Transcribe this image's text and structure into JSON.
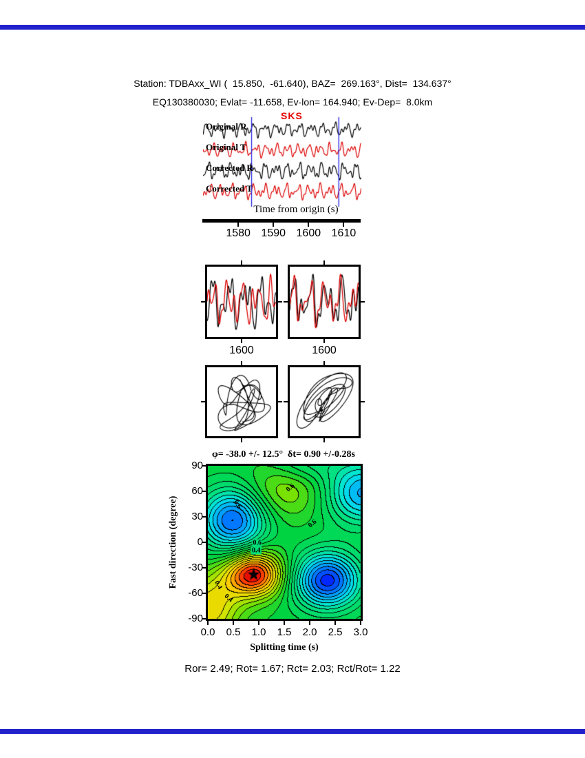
{
  "header": {
    "line1": "Station: TDBAxx_WI (  15.850,  -61.640), BAZ=  269.163°, Dist=  134.637°",
    "line2": "EQ130380030; Evlat= -11.658, Ev-lon= 164.940; Ev-Dep=  8.0km"
  },
  "seismogram": {
    "phase_label": "SKS",
    "axis_label": "Time from origin (s)",
    "trace_labels": [
      "Original R",
      "Original T",
      "Corrected R",
      "Corrected T"
    ],
    "tick_labels": [
      "1580",
      "1590",
      "1600",
      "1610"
    ],
    "colors": {
      "radial": "#000000",
      "transverse": "#dd0000",
      "window_line": "#2222e6",
      "phase": "#e60000"
    }
  },
  "wave_panels": {
    "tick_label": "1600"
  },
  "contour": {
    "title": "φ= -38.0 +/- 12.5°  δt= 0.90 +/-0.28s",
    "xlabel": "Splitting time (s)",
    "ylabel": "Fast direction (degree)",
    "xtick_labels": [
      "0.0",
      "0.5",
      "1.0",
      "1.5",
      "2.0",
      "2.5",
      "3.0"
    ],
    "ytick_labels": [
      "90",
      "60",
      "30",
      "0",
      "-30",
      "-60",
      "-90"
    ]
  },
  "footer": {
    "stats_line": "Ror= 2.49; Rot= 1.67; Rct= 2.03; Rct/Rot= 1.22"
  },
  "chart_data": {
    "type": "composite",
    "measurement": {
      "phi_deg": -38.0,
      "phi_err_deg": 12.5,
      "dt_s": 0.9,
      "dt_err_s": 0.28,
      "Ror": 2.49,
      "Rot": 1.67,
      "Rct": 2.03,
      "Rct_over_Rot": 1.22
    },
    "station": {
      "name": "TDBAxx_WI",
      "lat": 15.85,
      "lon": -61.64,
      "baz_deg": 269.163,
      "dist_deg": 134.637
    },
    "event": {
      "id": "EQ130380030",
      "lat": -11.658,
      "lon": 164.94,
      "depth_km": 8.0
    },
    "seismogram": {
      "time_range_s": [
        1570,
        1615
      ],
      "tick_values": [
        1580,
        1590,
        1600,
        1610
      ],
      "window_s": [
        1583.8,
        1608.6
      ],
      "rows": [
        {
          "label": "Original R",
          "color": "#000000",
          "comps": [
            [
              1,
              0.3,
              0.0
            ],
            [
              0.7,
              0.52,
              1.9
            ],
            [
              0.45,
              0.83,
              4.1
            ],
            [
              0.3,
              1.15,
              2.3
            ]
          ]
        },
        {
          "label": "Original T",
          "color": "#dd0000",
          "comps": [
            [
              1,
              0.33,
              1.2
            ],
            [
              0.8,
              0.55,
              0.4
            ],
            [
              0.5,
              0.8,
              3.3
            ],
            [
              0.3,
              1.1,
              5.0
            ]
          ]
        },
        {
          "label": "Corrected R",
          "color": "#000000",
          "comps": [
            [
              1,
              0.31,
              0.6
            ],
            [
              0.7,
              0.5,
              2.6
            ],
            [
              0.5,
              0.85,
              1.1
            ],
            [
              0.3,
              1.12,
              3.9
            ]
          ]
        },
        {
          "label": "Corrected T",
          "color": "#dd0000",
          "comps": [
            [
              1,
              0.32,
              1.4
            ],
            [
              0.75,
              0.52,
              3.3
            ],
            [
              0.5,
              0.84,
              1.9
            ],
            [
              0.3,
              1.1,
              4.6
            ]
          ]
        }
      ]
    },
    "panels": {
      "window_s": [
        1593,
        1607
      ],
      "tick_value": 1600,
      "pairs": [
        [
          0,
          1
        ],
        [
          2,
          3
        ]
      ]
    },
    "particles": [
      [
        1,
        0
      ],
      [
        3,
        2
      ]
    ],
    "contour_map": {
      "xlim": [
        0,
        3
      ],
      "ylim": [
        -90,
        90
      ],
      "xticks": [
        0,
        0.5,
        1,
        1.5,
        2,
        2.5,
        3
      ],
      "yticks": [
        90,
        60,
        30,
        0,
        -30,
        -60,
        -90
      ],
      "star": {
        "x": 0.9,
        "y": -38
      },
      "base": 0.55,
      "band_step": 0.04,
      "blobs": [
        [
          0.45,
          0.9,
          -38,
          0.4,
          19
        ],
        [
          -0.45,
          2.35,
          -45,
          0.45,
          23
        ],
        [
          -0.4,
          0.5,
          26,
          0.45,
          26
        ],
        [
          -0.32,
          3.05,
          58,
          0.5,
          26
        ],
        [
          0.13,
          1.5,
          60,
          0.55,
          24
        ],
        [
          0.24,
          0.05,
          -78,
          0.4,
          28
        ],
        [
          -0.1,
          1.9,
          92,
          0.5,
          15
        ]
      ],
      "palette": [
        [
          0.0,
          [
            0,
            0,
            160
          ]
        ],
        [
          0.1,
          [
            0,
            40,
            255
          ]
        ],
        [
          0.22,
          [
            0,
            160,
            255
          ]
        ],
        [
          0.32,
          [
            0,
            230,
            230
          ]
        ],
        [
          0.42,
          [
            0,
            225,
            130
          ]
        ],
        [
          0.55,
          [
            0,
            210,
            60
          ]
        ],
        [
          0.66,
          [
            120,
            225,
            0
          ]
        ],
        [
          0.75,
          [
            220,
            230,
            0
          ]
        ],
        [
          0.83,
          [
            255,
            200,
            0
          ]
        ],
        [
          0.9,
          [
            255,
            120,
            0
          ]
        ],
        [
          0.96,
          [
            255,
            30,
            0
          ]
        ],
        [
          1.0,
          [
            200,
            0,
            0
          ]
        ]
      ],
      "labels": [
        {
          "text": "0.6",
          "x": 1.62,
          "y": 64,
          "rot": -40
        },
        {
          "text": "0.6",
          "x": 0.58,
          "y": 45,
          "rot": 55
        },
        {
          "text": "0.6",
          "x": 0.97,
          "y": -1,
          "rot": 0,
          "bg": "#00dd77"
        },
        {
          "text": "0.4",
          "x": 0.95,
          "y": -10,
          "rot": 0,
          "bg": "#00dd77"
        },
        {
          "text": "0.4",
          "x": 0.2,
          "y": -50,
          "rot": 60
        },
        {
          "text": "0.4",
          "x": 0.4,
          "y": -66,
          "rot": 40
        },
        {
          "text": "0.6",
          "x": 2.05,
          "y": 22,
          "rot": -40
        }
      ]
    }
  }
}
